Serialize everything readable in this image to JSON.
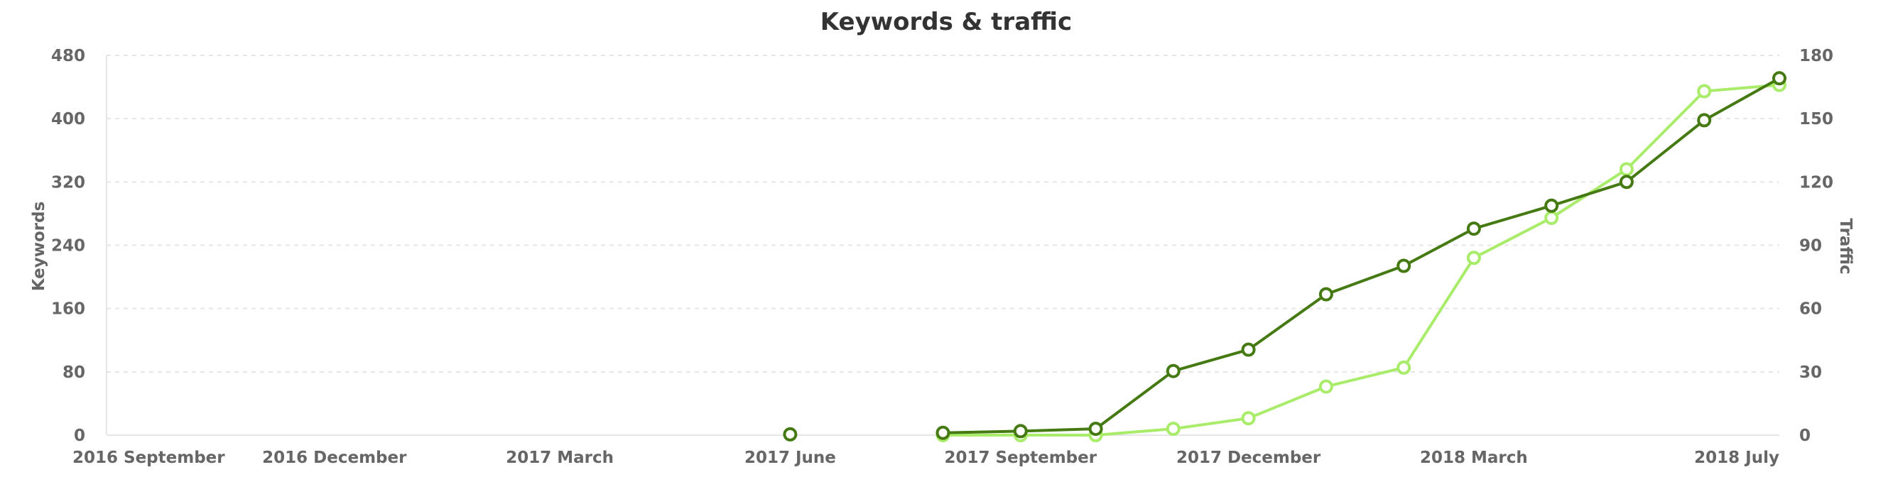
{
  "chart_data": {
    "type": "line",
    "title": "Keywords & traffic",
    "x_ticks": [
      "2016 September",
      "2016 December",
      "2017 March",
      "2017 June",
      "2017 September",
      "2017 December",
      "2018 March",
      "2018 July"
    ],
    "y_left": {
      "label": "Keywords",
      "min": 0,
      "max": 480,
      "ticks": [
        "0",
        "80",
        "160",
        "240",
        "320",
        "400",
        "480"
      ]
    },
    "y_right": {
      "label": "Traffic",
      "min": 0,
      "max": 180,
      "ticks": [
        "0",
        "30",
        "60",
        "90",
        "120",
        "150",
        "180"
      ]
    },
    "grid": true,
    "series": [
      {
        "axis": "left",
        "color": "#457a13",
        "points": [
          {
            "x": "2017-06-01",
            "y": 1
          },
          {
            "x": "2017-08-01",
            "y": 3
          },
          {
            "x": "2017-09-01",
            "y": 5
          },
          {
            "x": "2017-10-01",
            "y": 8
          },
          {
            "x": "2017-11-01",
            "y": 81
          },
          {
            "x": "2017-12-01",
            "y": 108
          },
          {
            "x": "2018-01-01",
            "y": 178
          },
          {
            "x": "2018-02-01",
            "y": 214
          },
          {
            "x": "2018-03-01",
            "y": 261
          },
          {
            "x": "2018-04-01",
            "y": 290
          },
          {
            "x": "2018-05-01",
            "y": 320
          },
          {
            "x": "2018-06-01",
            "y": 398
          },
          {
            "x": "2018-07-01",
            "y": 451
          }
        ]
      },
      {
        "axis": "right",
        "color": "#a8ec6a",
        "points": [
          {
            "x": "2017-08-01",
            "y": 0
          },
          {
            "x": "2017-09-01",
            "y": 0
          },
          {
            "x": "2017-10-01",
            "y": 0
          },
          {
            "x": "2017-11-01",
            "y": 3
          },
          {
            "x": "2017-12-01",
            "y": 8
          },
          {
            "x": "2018-01-01",
            "y": 23
          },
          {
            "x": "2018-02-01",
            "y": 32
          },
          {
            "x": "2018-03-01",
            "y": 84
          },
          {
            "x": "2018-04-01",
            "y": 103
          },
          {
            "x": "2018-05-01",
            "y": 126
          },
          {
            "x": "2018-06-01",
            "y": 163
          },
          {
            "x": "2018-07-01",
            "y": 166
          }
        ]
      }
    ]
  }
}
